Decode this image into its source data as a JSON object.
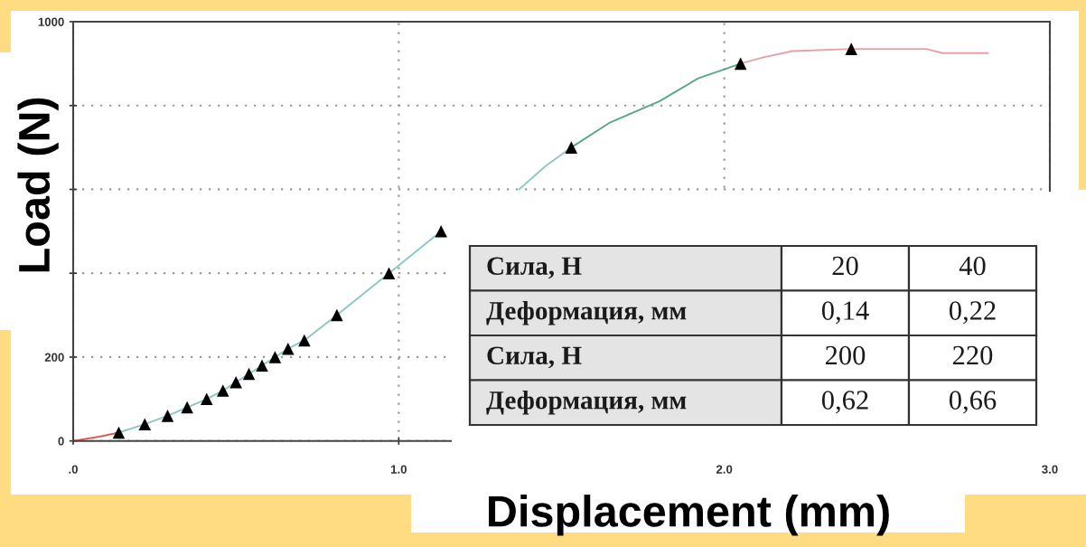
{
  "chart_data": {
    "type": "line",
    "xlabel": "Displacement (mm)",
    "ylabel": "Load (N)",
    "xlim": [
      0,
      3
    ],
    "xticks": [
      {
        "value": 0,
        "label": ".0"
      },
      {
        "value": 1,
        "label": "1.0"
      },
      {
        "value": 2,
        "label": "2.0"
      },
      {
        "value": 3,
        "label": "3.0"
      }
    ],
    "ylim": [
      0,
      1000
    ],
    "yticks": [
      0,
      200,
      {
        "value": 400,
        "label": null
      },
      {
        "value": 600,
        "label": null
      },
      {
        "value": 800,
        "label": null
      },
      1000
    ],
    "grid": true,
    "series": [
      {
        "color": "#e05a5a",
        "x": [
          0,
          0.08,
          0.14
        ],
        "values": [
          0,
          10,
          20
        ]
      },
      {
        "color": "#8cc7c4",
        "x": [
          0.14,
          0.22,
          0.29,
          0.35,
          0.41,
          0.46,
          0.5,
          0.54,
          0.58,
          0.62,
          0.66,
          0.71,
          0.81,
          0.97,
          1.13,
          1.25,
          1.37,
          1.45,
          1.53
        ],
        "values": [
          20,
          40,
          60,
          80,
          100,
          120,
          140,
          160,
          180,
          200,
          220,
          240,
          300,
          400,
          500,
          null,
          600,
          655,
          700
        ]
      },
      {
        "color": "#5aa883",
        "x": [
          1.53,
          1.65,
          1.8,
          1.92,
          2.05
        ],
        "values": [
          700,
          760,
          810,
          865,
          900
        ]
      },
      {
        "color": "#e8a0a8",
        "x": [
          2.05,
          2.12,
          2.21,
          2.39,
          2.62,
          2.67,
          2.81
        ],
        "values": [
          900,
          915,
          930,
          935,
          935,
          925,
          925
        ]
      },
      {
        "type": "scatter",
        "color": "#000000",
        "marker": "triangle",
        "x": [
          0.14,
          0.22,
          0.29,
          0.35,
          0.41,
          0.46,
          0.5,
          0.54,
          0.58,
          0.62,
          0.66,
          0.71,
          0.81,
          0.97,
          1.13,
          1.53,
          2.05,
          2.39
        ],
        "values": [
          20,
          40,
          60,
          80,
          100,
          120,
          140,
          160,
          180,
          200,
          220,
          240,
          300,
          400,
          500,
          700,
          900,
          935
        ]
      }
    ],
    "annotations": [
      "Сила, Н\t20\t40",
      "Деформация, мм\t0,14\t0,22",
      "Сила, Н\t200\t220",
      "Деформация, мм\t0,62\t0,66"
    ]
  }
}
